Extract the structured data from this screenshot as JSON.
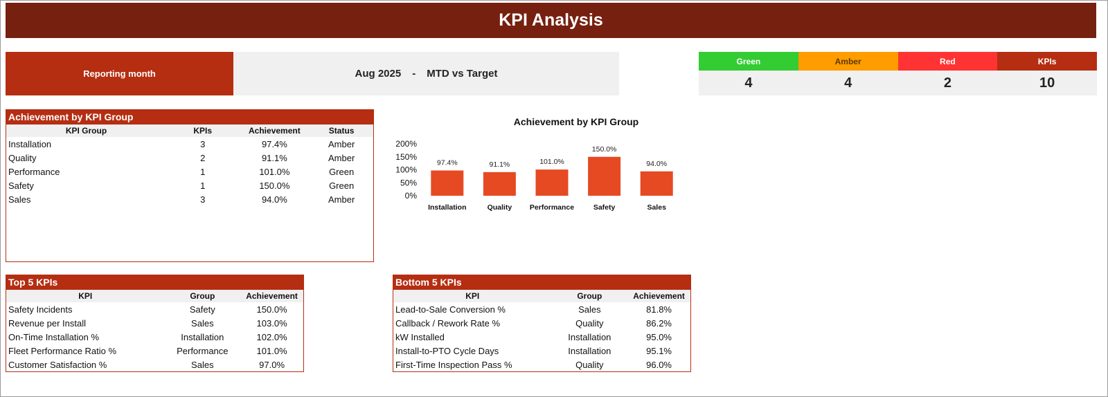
{
  "header": {
    "title": "KPI Analysis"
  },
  "reporting": {
    "label": "Reporting month",
    "month": "Aug 2025",
    "separator": "-",
    "mode": "MTD vs Target"
  },
  "status_summary": [
    {
      "label": "Green",
      "value": "4",
      "color": "#33cc33",
      "text_color": "#ffffff"
    },
    {
      "label": "Amber",
      "value": "4",
      "color": "#ff9c00",
      "text_color": "#5a3a00"
    },
    {
      "label": "Red",
      "value": "2",
      "color": "#ff3333",
      "text_color": "#ffffff"
    },
    {
      "label": "KPIs",
      "value": "10",
      "color": "#b52e12",
      "text_color": "#ffffff"
    }
  ],
  "group_table": {
    "title": "Achievement by KPI Group",
    "columns": [
      "KPI Group",
      "KPIs",
      "Achievement",
      "Status"
    ],
    "rows": [
      [
        "Installation",
        "3",
        "97.4%",
        "Amber"
      ],
      [
        "Quality",
        "2",
        "91.1%",
        "Amber"
      ],
      [
        "Performance",
        "1",
        "101.0%",
        "Green"
      ],
      [
        "Safety",
        "1",
        "150.0%",
        "Green"
      ],
      [
        "Sales",
        "3",
        "94.0%",
        "Amber"
      ]
    ]
  },
  "chart_data": {
    "type": "bar",
    "title": "Achievement by KPI Group",
    "categories": [
      "Installation",
      "Quality",
      "Performance",
      "Safety",
      "Sales"
    ],
    "values": [
      97.4,
      91.1,
      101.0,
      150.0,
      94.0
    ],
    "data_labels": [
      "97.4%",
      "91.1%",
      "101.0%",
      "150.0%",
      "94.0%"
    ],
    "y_ticks": [
      "0%",
      "50%",
      "100%",
      "150%",
      "200%"
    ],
    "ylim": [
      0,
      200
    ],
    "xlabel": "",
    "ylabel": "",
    "grid": false,
    "bar_color": "#e64a23"
  },
  "top5": {
    "title": "Top 5 KPIs",
    "columns": [
      "KPI",
      "Group",
      "Achievement"
    ],
    "rows": [
      [
        "Safety Incidents",
        "Safety",
        "150.0%"
      ],
      [
        "Revenue per Install",
        "Sales",
        "103.0%"
      ],
      [
        "On-Time Installation %",
        "Installation",
        "102.0%"
      ],
      [
        "Fleet Performance Ratio %",
        "Performance",
        "101.0%"
      ],
      [
        "Customer Satisfaction %",
        "Sales",
        "97.0%"
      ]
    ]
  },
  "bottom5": {
    "title": "Bottom 5 KPIs",
    "columns": [
      "KPI",
      "Group",
      "Achievement"
    ],
    "rows": [
      [
        "Lead-to-Sale Conversion %",
        "Sales",
        "81.8%"
      ],
      [
        "Callback / Rework Rate %",
        "Quality",
        "86.2%"
      ],
      [
        "kW Installed",
        "Installation",
        "95.0%"
      ],
      [
        "Install-to-PTO Cycle Days",
        "Installation",
        "95.1%"
      ],
      [
        "First-Time Inspection Pass %",
        "Quality",
        "96.0%"
      ]
    ]
  }
}
